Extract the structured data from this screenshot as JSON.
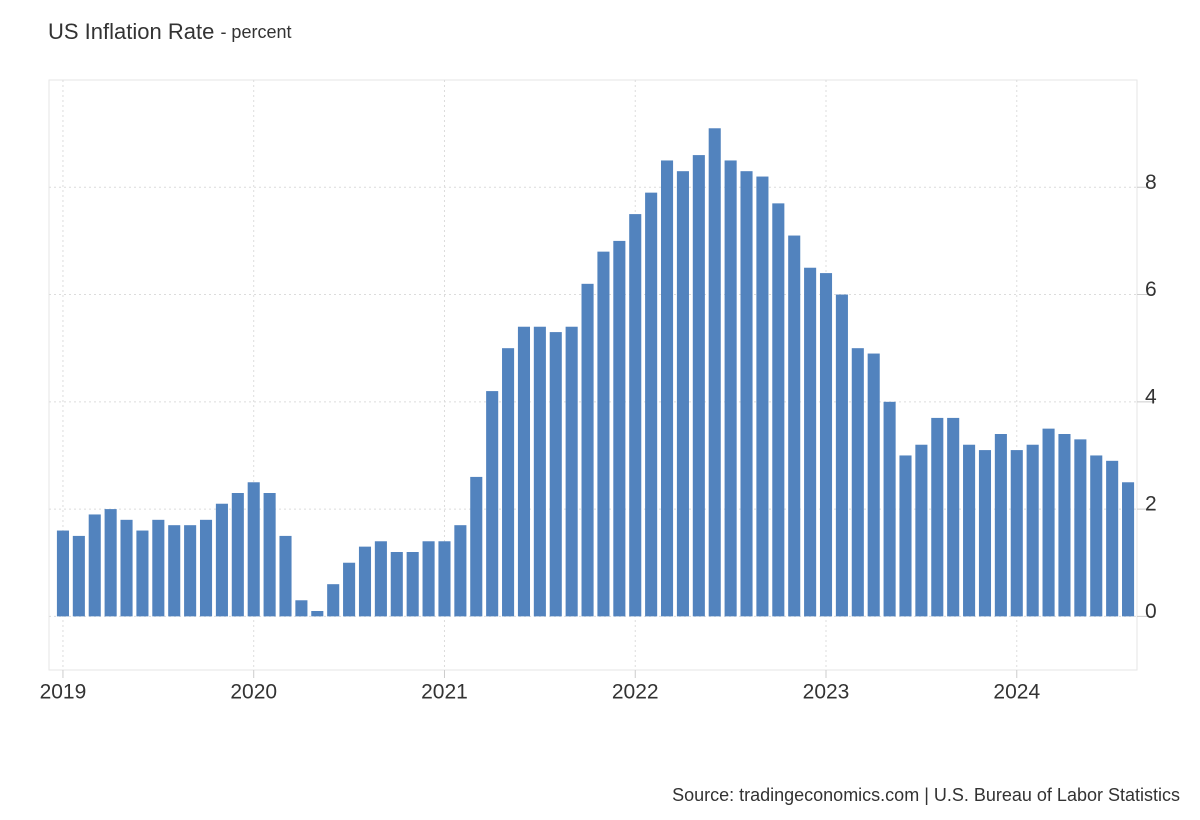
{
  "chart_data": {
    "type": "bar",
    "title": "US Inflation Rate",
    "subtitle": "- percent",
    "source": "Source: tradingeconomics.com | U.S. Bureau of Labor Statistics",
    "categories": [
      "2019",
      null,
      null,
      null,
      null,
      null,
      null,
      null,
      null,
      null,
      null,
      null,
      "2020",
      null,
      null,
      null,
      null,
      null,
      null,
      null,
      null,
      null,
      null,
      null,
      "2021",
      null,
      null,
      null,
      null,
      null,
      null,
      null,
      null,
      null,
      null,
      null,
      "2022",
      null,
      null,
      null,
      null,
      null,
      null,
      null,
      null,
      null,
      null,
      null,
      "2023",
      null,
      null,
      null,
      null,
      null,
      null,
      null,
      null,
      null,
      null,
      null,
      "2024",
      null,
      null,
      null,
      null,
      null,
      null,
      null
    ],
    "values": [
      1.6,
      1.5,
      1.9,
      2.0,
      1.8,
      1.6,
      1.8,
      1.7,
      1.7,
      1.8,
      2.1,
      2.3,
      2.5,
      2.3,
      1.5,
      0.3,
      0.1,
      0.6,
      1.0,
      1.3,
      1.4,
      1.2,
      1.2,
      1.4,
      1.4,
      1.7,
      2.6,
      4.2,
      5.0,
      5.4,
      5.4,
      5.3,
      5.4,
      6.2,
      6.8,
      7.0,
      7.5,
      7.9,
      8.5,
      8.3,
      8.6,
      9.1,
      8.5,
      8.3,
      8.2,
      7.7,
      7.1,
      6.5,
      6.4,
      6.0,
      5.0,
      4.9,
      4.0,
      3.0,
      3.2,
      3.7,
      3.7,
      3.2,
      3.1,
      3.4,
      3.1,
      3.2,
      3.5,
      3.4,
      3.3,
      3.0,
      2.9,
      2.5
    ],
    "color": "#5283be",
    "ylim": [
      -1,
      10
    ],
    "yticks": [
      0,
      2,
      4,
      6,
      8
    ],
    "grid": true
  }
}
